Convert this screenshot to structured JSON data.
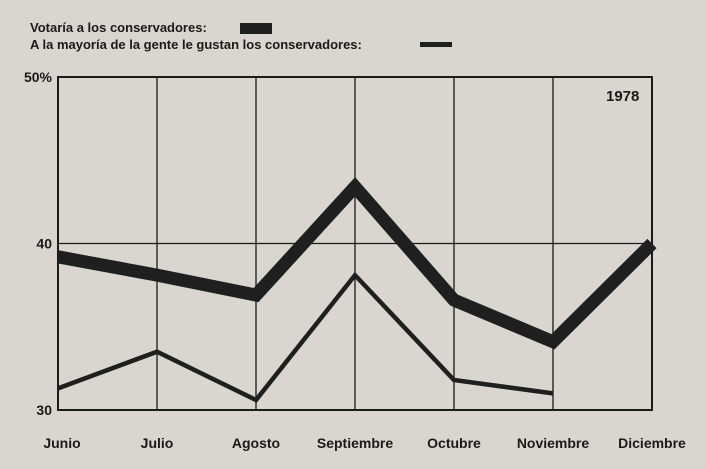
{
  "chart_data": {
    "type": "line",
    "categories": [
      "Junio",
      "Julio",
      "Agosto",
      "Septiembre",
      "Octubre",
      "Noviembre",
      "Diciembre"
    ],
    "series": [
      {
        "name": "Votaría a los conservadores:",
        "values": [
          39.2,
          38.1,
          36.9,
          43.4,
          36.6,
          34.1,
          40
        ],
        "color": "#1f1f1f",
        "style": "thick"
      },
      {
        "name": "A la mayoría de la gente le gustan los conservadores:",
        "values": [
          31.3,
          33.5,
          30.6,
          38.1,
          31.8,
          31.0,
          null
        ],
        "color": "#1f1f1f",
        "style": "thin"
      }
    ],
    "yticks": [
      {
        "value": 50,
        "label": "50%"
      },
      {
        "value": 40,
        "label": "40"
      },
      {
        "value": 30,
        "label": "30"
      }
    ],
    "ylim": [
      30,
      50
    ],
    "annotation": "1978",
    "grid": true,
    "legend_position": "top-left"
  }
}
